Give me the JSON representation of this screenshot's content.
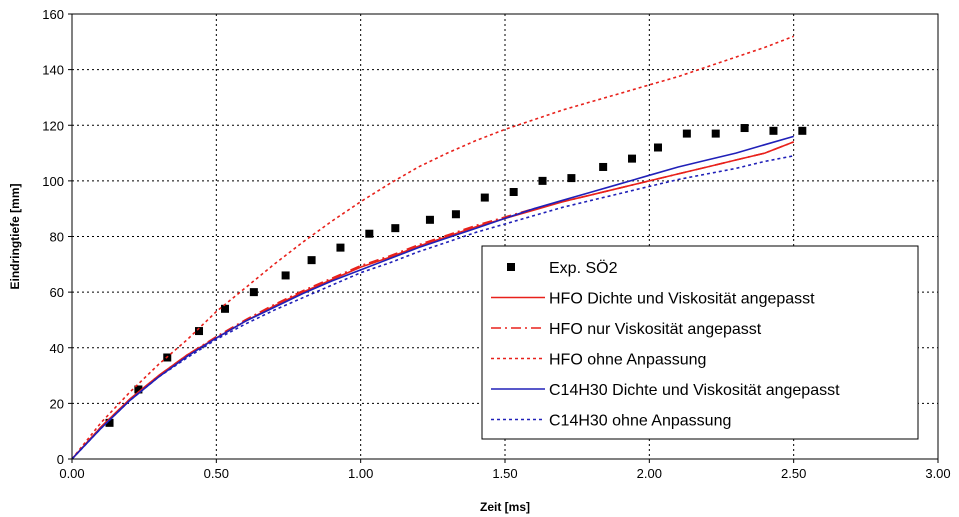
{
  "chart_data": {
    "type": "line",
    "xlabel": "Zeit [ms]",
    "ylabel": "Eindringtiefe [mm]",
    "xlim": [
      0,
      3.0
    ],
    "ylim": [
      0,
      160
    ],
    "x_ticks": [
      "0.00",
      "0.50",
      "1.00",
      "1.50",
      "2.00",
      "2.50",
      "3.00"
    ],
    "y_ticks": [
      "0",
      "20",
      "40",
      "60",
      "80",
      "100",
      "120",
      "140",
      "160"
    ],
    "grid": true,
    "legend_position": "bottom-right",
    "series": [
      {
        "name": "Exp. SÖ2",
        "style": "markers",
        "color": "#000000",
        "points": [
          [
            0.13,
            13
          ],
          [
            0.23,
            25
          ],
          [
            0.33,
            36.5
          ],
          [
            0.44,
            46
          ],
          [
            0.53,
            54
          ],
          [
            0.63,
            60
          ],
          [
            0.74,
            66
          ],
          [
            0.83,
            71.5
          ],
          [
            0.93,
            76
          ],
          [
            1.03,
            81
          ],
          [
            1.12,
            83
          ],
          [
            1.24,
            86
          ],
          [
            1.33,
            88
          ],
          [
            1.43,
            94
          ],
          [
            1.53,
            96
          ],
          [
            1.63,
            100
          ],
          [
            1.73,
            101
          ],
          [
            1.84,
            105
          ],
          [
            1.94,
            108
          ],
          [
            2.03,
            112
          ],
          [
            2.13,
            117
          ],
          [
            2.23,
            117
          ],
          [
            2.33,
            119
          ],
          [
            2.43,
            118
          ],
          [
            2.53,
            118
          ]
        ]
      },
      {
        "name": "HFO Dichte und Viskosität angepasst",
        "style": "solid",
        "color": "#e8211b",
        "points": [
          [
            0,
            0
          ],
          [
            0.1,
            11.5
          ],
          [
            0.2,
            21.5
          ],
          [
            0.3,
            30
          ],
          [
            0.4,
            37.5
          ],
          [
            0.5,
            43.5
          ],
          [
            0.6,
            49.5
          ],
          [
            0.7,
            55
          ],
          [
            0.8,
            60
          ],
          [
            0.9,
            64.5
          ],
          [
            1.0,
            69
          ],
          [
            1.1,
            72.5
          ],
          [
            1.2,
            76.5
          ],
          [
            1.3,
            80
          ],
          [
            1.4,
            83.5
          ],
          [
            1.5,
            86.5
          ],
          [
            1.6,
            89.5
          ],
          [
            1.7,
            92.5
          ],
          [
            1.8,
            95
          ],
          [
            1.9,
            97.5
          ],
          [
            2.0,
            100
          ],
          [
            2.1,
            102.5
          ],
          [
            2.2,
            105
          ],
          [
            2.3,
            107.5
          ],
          [
            2.4,
            110
          ],
          [
            2.5,
            114
          ]
        ]
      },
      {
        "name": "HFO nur Viskosität angepasst",
        "style": "dashdot",
        "color": "#e8211b",
        "points": [
          [
            0,
            0
          ],
          [
            0.1,
            11.5
          ],
          [
            0.2,
            21.5
          ],
          [
            0.3,
            30
          ],
          [
            0.4,
            37.5
          ],
          [
            0.5,
            44
          ],
          [
            0.6,
            50
          ],
          [
            0.7,
            55.5
          ],
          [
            0.8,
            60.5
          ],
          [
            0.9,
            65
          ],
          [
            1.0,
            69.5
          ],
          [
            1.1,
            73
          ],
          [
            1.2,
            77
          ],
          [
            1.3,
            80.5
          ],
          [
            1.4,
            84
          ],
          [
            1.5,
            87
          ],
          [
            1.6,
            90
          ],
          [
            1.7,
            92.5
          ],
          [
            1.8,
            95
          ],
          [
            1.9,
            97.5
          ],
          [
            2.0,
            100
          ],
          [
            2.1,
            102.5
          ],
          [
            2.2,
            105
          ],
          [
            2.3,
            107.5
          ],
          [
            2.4,
            110
          ],
          [
            2.5,
            114
          ]
        ]
      },
      {
        "name": "HFO ohne Anpassung",
        "style": "dotted",
        "color": "#e8211b",
        "points": [
          [
            0,
            0
          ],
          [
            0.1,
            13
          ],
          [
            0.2,
            24
          ],
          [
            0.3,
            34
          ],
          [
            0.4,
            43
          ],
          [
            0.5,
            53
          ],
          [
            0.6,
            61.5
          ],
          [
            0.7,
            70
          ],
          [
            0.8,
            78
          ],
          [
            0.9,
            85.5
          ],
          [
            1.0,
            92.5
          ],
          [
            1.1,
            99
          ],
          [
            1.2,
            105
          ],
          [
            1.3,
            110
          ],
          [
            1.4,
            114.5
          ],
          [
            1.5,
            118.5
          ],
          [
            1.6,
            122
          ],
          [
            1.7,
            125.5
          ],
          [
            1.8,
            128.5
          ],
          [
            1.9,
            131.5
          ],
          [
            2.0,
            134.5
          ],
          [
            2.1,
            137.5
          ],
          [
            2.2,
            141
          ],
          [
            2.3,
            144.5
          ],
          [
            2.4,
            148
          ],
          [
            2.5,
            152
          ]
        ]
      },
      {
        "name": "C14H30 Dichte und Viskosität angepasst",
        "style": "solid",
        "color": "#2020b8",
        "points": [
          [
            0,
            0
          ],
          [
            0.1,
            11
          ],
          [
            0.2,
            21
          ],
          [
            0.3,
            29.5
          ],
          [
            0.4,
            37
          ],
          [
            0.5,
            43.5
          ],
          [
            0.6,
            49.5
          ],
          [
            0.7,
            54.5
          ],
          [
            0.8,
            59.5
          ],
          [
            0.9,
            64
          ],
          [
            1.0,
            68
          ],
          [
            1.1,
            72
          ],
          [
            1.2,
            76
          ],
          [
            1.3,
            79.5
          ],
          [
            1.4,
            83
          ],
          [
            1.5,
            86.5
          ],
          [
            1.6,
            90
          ],
          [
            1.7,
            93
          ],
          [
            1.8,
            96
          ],
          [
            1.9,
            99
          ],
          [
            2.0,
            102
          ],
          [
            2.1,
            105
          ],
          [
            2.2,
            107.5
          ],
          [
            2.3,
            110
          ],
          [
            2.4,
            113
          ],
          [
            2.5,
            116
          ]
        ]
      },
      {
        "name": "C14H30 ohne Anpassung",
        "style": "dotted",
        "color": "#2020b8",
        "points": [
          [
            0,
            0
          ],
          [
            0.1,
            11
          ],
          [
            0.2,
            21
          ],
          [
            0.3,
            29.5
          ],
          [
            0.4,
            36.5
          ],
          [
            0.5,
            43
          ],
          [
            0.6,
            48.5
          ],
          [
            0.7,
            53.5
          ],
          [
            0.8,
            58
          ],
          [
            0.9,
            62.5
          ],
          [
            1.0,
            67
          ],
          [
            1.1,
            70.5
          ],
          [
            1.2,
            74.5
          ],
          [
            1.3,
            78
          ],
          [
            1.4,
            81.5
          ],
          [
            1.5,
            84.5
          ],
          [
            1.6,
            87.5
          ],
          [
            1.7,
            90.5
          ],
          [
            1.8,
            93
          ],
          [
            1.9,
            95.5
          ],
          [
            2.0,
            98
          ],
          [
            2.1,
            100.5
          ],
          [
            2.2,
            102.5
          ],
          [
            2.3,
            104.5
          ],
          [
            2.4,
            107
          ],
          [
            2.5,
            109
          ]
        ]
      }
    ]
  }
}
